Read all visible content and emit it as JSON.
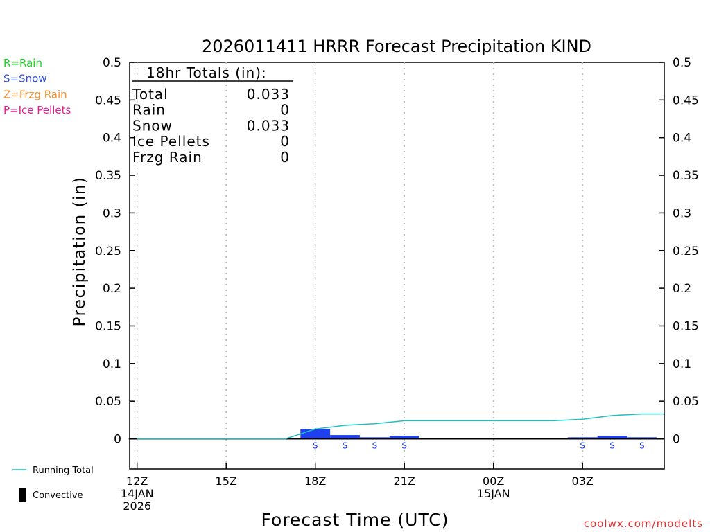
{
  "chart_data": {
    "type": "bar",
    "title": "2026011411 HRRR Forecast Precipitation KIND",
    "xlabel": "Forecast Time (UTC)",
    "ylabel": "Precipitation (in)",
    "ylim": [
      -0.04,
      0.5
    ],
    "yticks": [
      0,
      0.05,
      0.1,
      0.15,
      0.2,
      0.25,
      0.3,
      0.35,
      0.4,
      0.45,
      0.5
    ],
    "ytick_labels": [
      "0",
      "0.05",
      "0.1",
      "0.15",
      "0.2",
      "0.25",
      "0.3",
      "0.35",
      "0.4",
      "0.45",
      "0.5"
    ],
    "xlim": [
      -0.25,
      17.75
    ],
    "xticks": [
      {
        "hour": 0,
        "lines": [
          "12Z",
          "14JAN",
          "2026"
        ]
      },
      {
        "hour": 3,
        "lines": [
          "15Z"
        ]
      },
      {
        "hour": 6,
        "lines": [
          "18Z"
        ]
      },
      {
        "hour": 9,
        "lines": [
          "21Z"
        ]
      },
      {
        "hour": 12,
        "lines": [
          "00Z",
          "15JAN"
        ]
      },
      {
        "hour": 15,
        "lines": [
          "03Z"
        ]
      }
    ],
    "grid": "vertical dotted",
    "bars": [
      {
        "start": 5.5,
        "end": 6.5,
        "value": 0.013,
        "type": "S"
      },
      {
        "start": 6.5,
        "end": 7.5,
        "value": 0.005,
        "type": "S"
      },
      {
        "start": 7.5,
        "end": 8.5,
        "value": 0.002,
        "type": "S"
      },
      {
        "start": 8.5,
        "end": 9.5,
        "value": 0.004,
        "type": "S"
      },
      {
        "start": 14.5,
        "end": 15.5,
        "value": 0.002,
        "type": "S"
      },
      {
        "start": 15.5,
        "end": 16.5,
        "value": 0.004,
        "type": "S"
      },
      {
        "start": 16.5,
        "end": 17.5,
        "value": 0.002,
        "type": "S"
      }
    ],
    "ptype_markers": [
      {
        "hour": 6,
        "label": "S"
      },
      {
        "hour": 7,
        "label": "S"
      },
      {
        "hour": 8,
        "label": "S"
      },
      {
        "hour": 9,
        "label": "S"
      },
      {
        "hour": 15,
        "label": "S"
      },
      {
        "hour": 16,
        "label": "S"
      },
      {
        "hour": 17,
        "label": "S"
      }
    ],
    "running_total": {
      "name": "Running Total",
      "points": [
        [
          0,
          0
        ],
        [
          1,
          0
        ],
        [
          2,
          0
        ],
        [
          3,
          0
        ],
        [
          4,
          0
        ],
        [
          5,
          0
        ],
        [
          6,
          0.013
        ],
        [
          7,
          0.018
        ],
        [
          8,
          0.02
        ],
        [
          9,
          0.024
        ],
        [
          10,
          0.024
        ],
        [
          11,
          0.024
        ],
        [
          12,
          0.024
        ],
        [
          13,
          0.024
        ],
        [
          14,
          0.024
        ],
        [
          15,
          0.026
        ],
        [
          16,
          0.031
        ],
        [
          17,
          0.033
        ],
        [
          17.75,
          0.033
        ]
      ]
    },
    "colors": {
      "snow_bar": "#2040f0",
      "running_total": "#20c0c0",
      "zero_line": "#000000"
    },
    "totals_box": {
      "header": "18hr Totals (in):",
      "rows": [
        {
          "label": "Total",
          "value": "0.033"
        },
        {
          "label": "Rain",
          "value": "0"
        },
        {
          "label": "Snow",
          "value": "0.033"
        },
        {
          "label": "Ice Pellets",
          "value": "0"
        },
        {
          "label": "Frzg Rain",
          "value": "0"
        }
      ]
    },
    "ptype_legend": [
      {
        "text": "R=Rain",
        "color": "#20d020"
      },
      {
        "text": "S=Snow",
        "color": "#3050e0"
      },
      {
        "text": "Z=Frzg Rain",
        "color": "#f09030"
      },
      {
        "text": "P=Ice Pellets",
        "color": "#e02090"
      }
    ],
    "series_legend": [
      {
        "text": "Running Total",
        "color": "#20c0c0",
        "kind": "line"
      },
      {
        "text": "Convective",
        "color": "#000000",
        "kind": "bar"
      }
    ],
    "footer": "coolwx.com/modelts",
    "footer_color": "#e03030"
  }
}
